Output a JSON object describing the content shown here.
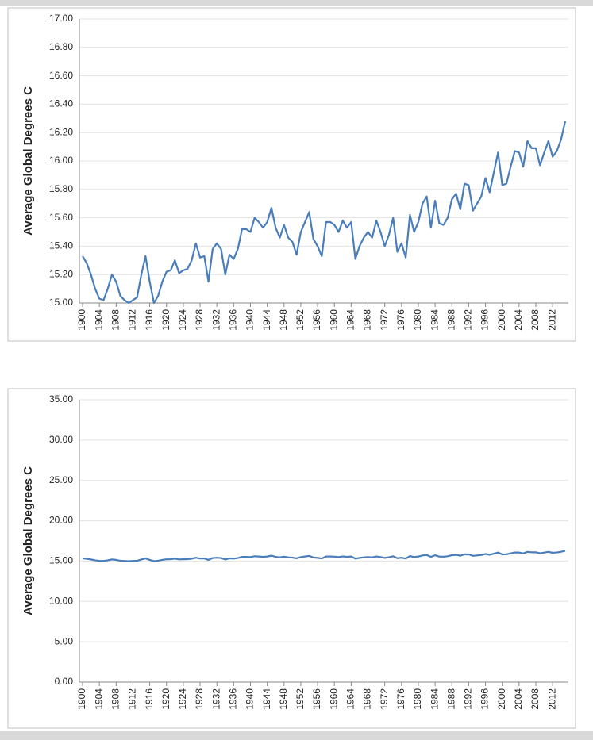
{
  "chart_data": [
    {
      "type": "line",
      "y_label": "Average Global Degrees C",
      "x": [
        1900,
        1901,
        1902,
        1903,
        1904,
        1905,
        1906,
        1907,
        1908,
        1909,
        1910,
        1911,
        1912,
        1913,
        1914,
        1915,
        1916,
        1917,
        1918,
        1919,
        1920,
        1921,
        1922,
        1923,
        1924,
        1925,
        1926,
        1927,
        1928,
        1929,
        1930,
        1931,
        1932,
        1933,
        1934,
        1935,
        1936,
        1937,
        1938,
        1939,
        1940,
        1941,
        1942,
        1943,
        1944,
        1945,
        1946,
        1947,
        1948,
        1949,
        1950,
        1951,
        1952,
        1953,
        1954,
        1955,
        1956,
        1957,
        1958,
        1959,
        1960,
        1961,
        1962,
        1963,
        1964,
        1965,
        1966,
        1967,
        1968,
        1969,
        1970,
        1971,
        1972,
        1973,
        1974,
        1975,
        1976,
        1977,
        1978,
        1979,
        1980,
        1981,
        1982,
        1983,
        1984,
        1985,
        1986,
        1987,
        1988,
        1989,
        1990,
        1991,
        1992,
        1993,
        1994,
        1995,
        1996,
        1997,
        1998,
        1999,
        2000,
        2001,
        2002,
        2003,
        2004,
        2005,
        2006,
        2007,
        2008,
        2009,
        2010,
        2011,
        2012,
        2013,
        2014,
        2015
      ],
      "series": [
        {
          "color": "#4a7ebb",
          "values": [
            15.33,
            15.28,
            15.2,
            15.1,
            15.03,
            15.02,
            15.1,
            15.2,
            15.15,
            15.05,
            15.02,
            15.0,
            15.02,
            15.04,
            15.2,
            15.33,
            15.15,
            15.0,
            15.05,
            15.15,
            15.22,
            15.23,
            15.3,
            15.21,
            15.23,
            15.24,
            15.3,
            15.42,
            15.32,
            15.33,
            15.15,
            15.38,
            15.42,
            15.38,
            15.2,
            15.34,
            15.31,
            15.38,
            15.52,
            15.52,
            15.5,
            15.6,
            15.57,
            15.53,
            15.57,
            15.67,
            15.53,
            15.46,
            15.55,
            15.46,
            15.43,
            15.34,
            15.5,
            15.57,
            15.64,
            15.45,
            15.4,
            15.33,
            15.57,
            15.57,
            15.55,
            15.5,
            15.58,
            15.53,
            15.57,
            15.31,
            15.4,
            15.46,
            15.5,
            15.46,
            15.58,
            15.5,
            15.4,
            15.48,
            15.6,
            15.36,
            15.42,
            15.32,
            15.62,
            15.5,
            15.57,
            15.7,
            15.75,
            15.53,
            15.72,
            15.56,
            15.55,
            15.6,
            15.73,
            15.77,
            15.66,
            15.84,
            15.83,
            15.65,
            15.7,
            15.75,
            15.88,
            15.78,
            15.92,
            16.06,
            15.83,
            15.84,
            15.96,
            16.07,
            16.06,
            15.96,
            16.14,
            16.09,
            16.09,
            15.97,
            16.06,
            16.14,
            16.03,
            16.07,
            16.15,
            16.28
          ]
        }
      ],
      "xlim": [
        1900,
        2015
      ],
      "xticks": [
        1900,
        1904,
        1908,
        1912,
        1916,
        1920,
        1924,
        1928,
        1932,
        1936,
        1940,
        1944,
        1948,
        1952,
        1956,
        1960,
        1964,
        1968,
        1972,
        1976,
        1980,
        1984,
        1988,
        1992,
        1996,
        2000,
        2004,
        2008,
        2012
      ],
      "ylim": [
        15,
        17
      ],
      "yticks": [
        {
          "value": 15,
          "label": "15.00"
        },
        {
          "value": 15.2,
          "label": "15.20"
        },
        {
          "value": 15.4,
          "label": "15.40"
        },
        {
          "value": 15.6,
          "label": "15.60"
        },
        {
          "value": 15.8,
          "label": "15.80"
        },
        {
          "value": 16,
          "label": "16.00"
        },
        {
          "value": 16.2,
          "label": "16.20"
        },
        {
          "value": 16.4,
          "label": "16.40"
        },
        {
          "value": 16.6,
          "label": "16.60"
        },
        {
          "value": 16.8,
          "label": "16.80"
        },
        {
          "value": 17,
          "label": "17.00"
        }
      ],
      "grid": true
    },
    {
      "type": "line",
      "y_label": "Average Global Degrees C",
      "x": [
        1900,
        1901,
        1902,
        1903,
        1904,
        1905,
        1906,
        1907,
        1908,
        1909,
        1910,
        1911,
        1912,
        1913,
        1914,
        1915,
        1916,
        1917,
        1918,
        1919,
        1920,
        1921,
        1922,
        1923,
        1924,
        1925,
        1926,
        1927,
        1928,
        1929,
        1930,
        1931,
        1932,
        1933,
        1934,
        1935,
        1936,
        1937,
        1938,
        1939,
        1940,
        1941,
        1942,
        1943,
        1944,
        1945,
        1946,
        1947,
        1948,
        1949,
        1950,
        1951,
        1952,
        1953,
        1954,
        1955,
        1956,
        1957,
        1958,
        1959,
        1960,
        1961,
        1962,
        1963,
        1964,
        1965,
        1966,
        1967,
        1968,
        1969,
        1970,
        1971,
        1972,
        1973,
        1974,
        1975,
        1976,
        1977,
        1978,
        1979,
        1980,
        1981,
        1982,
        1983,
        1984,
        1985,
        1986,
        1987,
        1988,
        1989,
        1990,
        1991,
        1992,
        1993,
        1994,
        1995,
        1996,
        1997,
        1998,
        1999,
        2000,
        2001,
        2002,
        2003,
        2004,
        2005,
        2006,
        2007,
        2008,
        2009,
        2010,
        2011,
        2012,
        2013,
        2014,
        2015
      ],
      "series": [
        {
          "color": "#4a7ebb",
          "values": [
            15.33,
            15.28,
            15.2,
            15.1,
            15.03,
            15.02,
            15.1,
            15.2,
            15.15,
            15.05,
            15.02,
            15.0,
            15.02,
            15.04,
            15.2,
            15.33,
            15.15,
            15.0,
            15.05,
            15.15,
            15.22,
            15.23,
            15.3,
            15.21,
            15.23,
            15.24,
            15.3,
            15.42,
            15.32,
            15.33,
            15.15,
            15.38,
            15.42,
            15.38,
            15.2,
            15.34,
            15.31,
            15.38,
            15.52,
            15.52,
            15.5,
            15.6,
            15.57,
            15.53,
            15.57,
            15.67,
            15.53,
            15.46,
            15.55,
            15.46,
            15.43,
            15.34,
            15.5,
            15.57,
            15.64,
            15.45,
            15.4,
            15.33,
            15.57,
            15.57,
            15.55,
            15.5,
            15.58,
            15.53,
            15.57,
            15.31,
            15.4,
            15.46,
            15.5,
            15.46,
            15.58,
            15.5,
            15.4,
            15.48,
            15.6,
            15.36,
            15.42,
            15.32,
            15.62,
            15.5,
            15.57,
            15.7,
            15.75,
            15.53,
            15.72,
            15.56,
            15.55,
            15.6,
            15.73,
            15.77,
            15.66,
            15.84,
            15.83,
            15.65,
            15.7,
            15.75,
            15.88,
            15.78,
            15.92,
            16.06,
            15.83,
            15.84,
            15.96,
            16.07,
            16.06,
            15.96,
            16.14,
            16.09,
            16.09,
            15.97,
            16.06,
            16.14,
            16.03,
            16.07,
            16.15,
            16.28
          ]
        }
      ],
      "xlim": [
        1900,
        2015
      ],
      "xticks": [
        1900,
        1904,
        1908,
        1912,
        1916,
        1920,
        1924,
        1928,
        1932,
        1936,
        1940,
        1944,
        1948,
        1952,
        1956,
        1960,
        1964,
        1968,
        1972,
        1976,
        1980,
        1984,
        1988,
        1992,
        1996,
        2000,
        2004,
        2008,
        2012
      ],
      "ylim": [
        0,
        35
      ],
      "yticks": [
        {
          "value": 0,
          "label": "0.00"
        },
        {
          "value": 5,
          "label": "5.00"
        },
        {
          "value": 10,
          "label": "10.00"
        },
        {
          "value": 15,
          "label": "15.00"
        },
        {
          "value": 20,
          "label": "20.00"
        },
        {
          "value": 25,
          "label": "25.00"
        },
        {
          "value": 30,
          "label": "30.00"
        },
        {
          "value": 35,
          "label": "35.00"
        }
      ],
      "grid": true
    }
  ]
}
